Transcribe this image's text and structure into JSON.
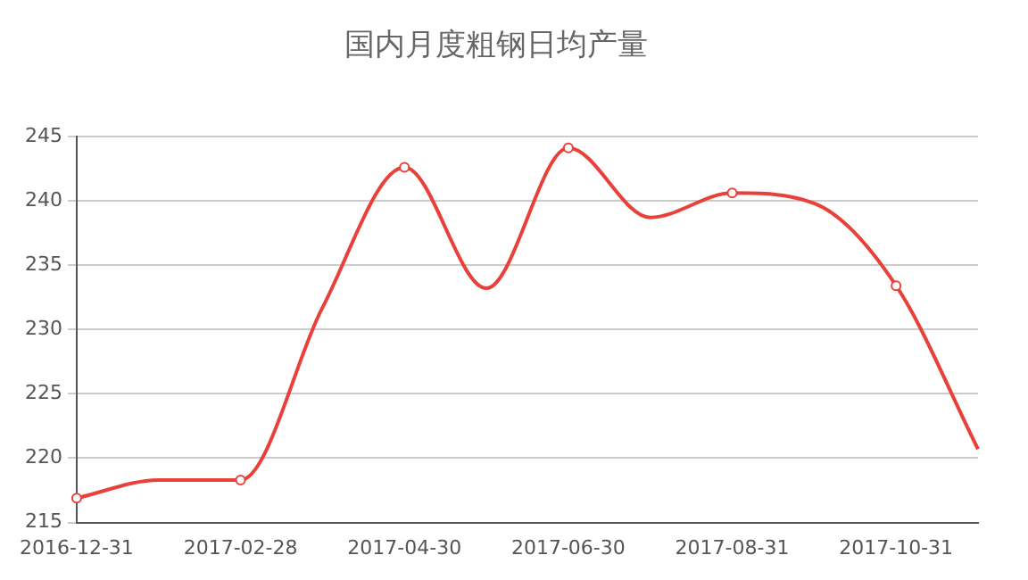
{
  "chart_data": {
    "type": "line",
    "title": "国内月度粗钢日均产量",
    "categories": [
      "2016-12-31",
      null,
      "2017-02-28",
      null,
      "2017-04-30",
      null,
      "2017-06-30",
      null,
      "2017-08-31",
      null,
      "2017-10-31",
      null
    ],
    "series": [
      {
        "color": "#e8413a",
        "values": [
          216.9,
          218.3,
          218.3,
          231.7,
          242.6,
          233.2,
          244.1,
          238.7,
          240.6,
          239.8,
          233.4,
          220.7
        ]
      }
    ],
    "ylim": [
      215,
      245
    ],
    "yticks": [
      215,
      220,
      225,
      230,
      235,
      240,
      245
    ],
    "grid": "y",
    "legend": false,
    "marker": "circle",
    "line_style": "solid"
  }
}
